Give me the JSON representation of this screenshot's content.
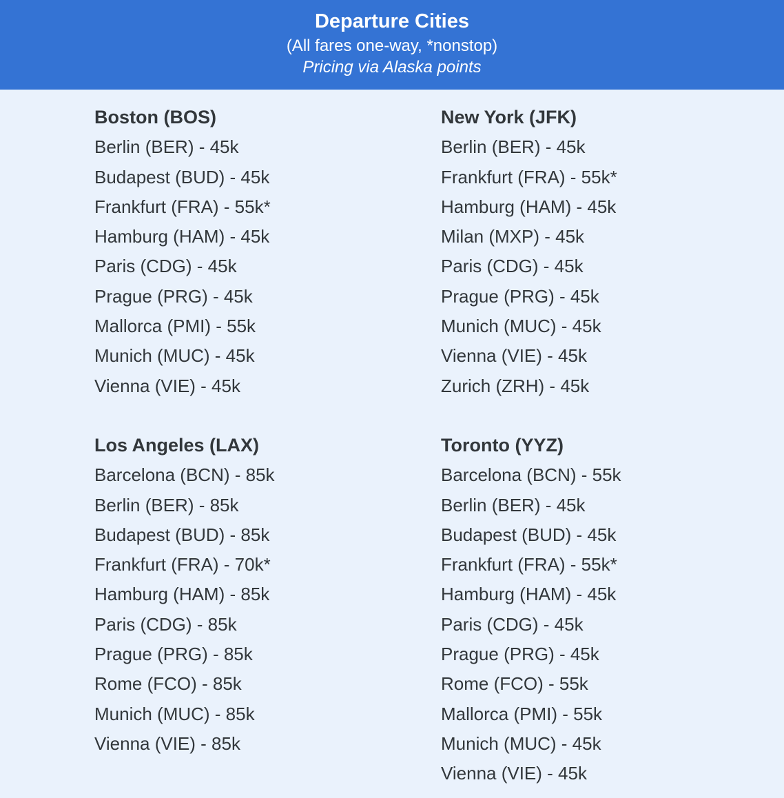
{
  "header": {
    "title": "Departure Cities",
    "subtitle": "(All fares one-way, *nonstop)",
    "pricing_note": "Pricing via Alaska points"
  },
  "colors": {
    "header_bg": "#3473d4",
    "header_text": "#ffffff",
    "page_bg": "#eaf2fc",
    "body_text": "#32373b"
  },
  "sections": [
    {
      "city": "Boston (BOS)",
      "fares": [
        "Berlin (BER) - 45k",
        "Budapest (BUD) - 45k",
        "Frankfurt (FRA) - 55k*",
        "Hamburg (HAM) - 45k",
        "Paris (CDG) - 45k",
        "Prague (PRG) - 45k",
        "Mallorca (PMI) - 55k",
        "Munich (MUC) - 45k",
        "Vienna (VIE) - 45k"
      ]
    },
    {
      "city": "New York (JFK)",
      "fares": [
        "Berlin (BER) - 45k",
        "Frankfurt (FRA) - 55k*",
        "Hamburg (HAM) - 45k",
        "Milan (MXP) - 45k",
        "Paris (CDG) - 45k",
        "Prague (PRG) - 45k",
        "Munich (MUC) - 45k",
        "Vienna (VIE) - 45k",
        "Zurich (ZRH) - 45k"
      ]
    },
    {
      "city": "Los Angeles (LAX)",
      "fares": [
        "Barcelona (BCN) - 85k",
        "Berlin (BER) - 85k",
        "Budapest (BUD) - 85k",
        "Frankfurt (FRA) - 70k*",
        "Hamburg (HAM) - 85k",
        "Paris (CDG) - 85k",
        "Prague (PRG) - 85k",
        "Rome (FCO) - 85k",
        "Munich (MUC) - 85k",
        "Vienna (VIE) - 85k"
      ]
    },
    {
      "city": "Toronto (YYZ)",
      "fares": [
        "Barcelona (BCN) - 55k",
        "Berlin (BER) - 45k",
        "Budapest (BUD) - 45k",
        "Frankfurt (FRA) - 55k*",
        "Hamburg (HAM) - 45k",
        "Paris (CDG) - 45k",
        "Prague (PRG) - 45k",
        "Rome (FCO) - 55k",
        "Mallorca (PMI) - 55k",
        "Munich (MUC) - 45k",
        "Vienna (VIE) - 45k"
      ]
    }
  ]
}
